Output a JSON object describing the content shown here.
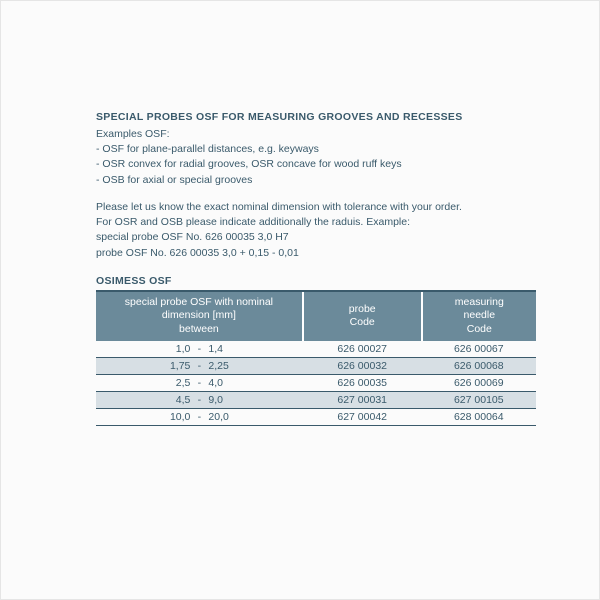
{
  "title": "SPECIAL PROBES OSF FOR MEASURING GROOVES AND RECESSES",
  "intro": {
    "l1": "Examples OSF:",
    "l2": "- OSF for plane-parallel distances, e.g. keyways",
    "l3": "- OSR convex for radial grooves, OSR concave for wood ruff keys",
    "l4": "- OSB for axial or special grooves"
  },
  "para": {
    "l1": "Please let us know the exact nominal dimension with tolerance with your order.",
    "l2": "For OSR and OSB please indicate additionally the raduis. Example:",
    "l3": "special probe OSF No. 626 00035 3,0 H7",
    "l4": "probe OSF No. 626 00035  3,0 + 0,15 - 0,01"
  },
  "table_title": "OSIMESS OSF",
  "table": {
    "headers": {
      "dim_l1": "special probe OSF with nominal",
      "dim_l2": "dimension [mm]",
      "dim_l3": "between",
      "probe_l1": "probe",
      "probe_l2": "Code",
      "needle_l1": "measuring",
      "needle_l2": "needle",
      "needle_l3": "Code"
    },
    "rows": [
      {
        "a": "1,0",
        "b": "1,4",
        "probe": "626 00027",
        "needle": "626 00067",
        "alt": false
      },
      {
        "a": "1,75",
        "b": "2,25",
        "probe": "626 00032",
        "needle": "626 00068",
        "alt": true
      },
      {
        "a": "2,5",
        "b": "4,0",
        "probe": "626 00035",
        "needle": "626 00069",
        "alt": false
      },
      {
        "a": "4,5",
        "b": "9,0",
        "probe": "627 00031",
        "needle": "627 00105",
        "alt": true
      },
      {
        "a": "10,0",
        "b": "20,0",
        "probe": "627 00042",
        "needle": "628 00064",
        "alt": false
      }
    ],
    "styling": {
      "header_bg": "#6b8a9a",
      "header_text": "#ffffff",
      "alt_row_bg": "#d7dfe4",
      "border_color": "#3a5a6b",
      "text_color": "#3a5a6b",
      "font_size_pt": 8,
      "background": "#fbfbfb"
    }
  }
}
